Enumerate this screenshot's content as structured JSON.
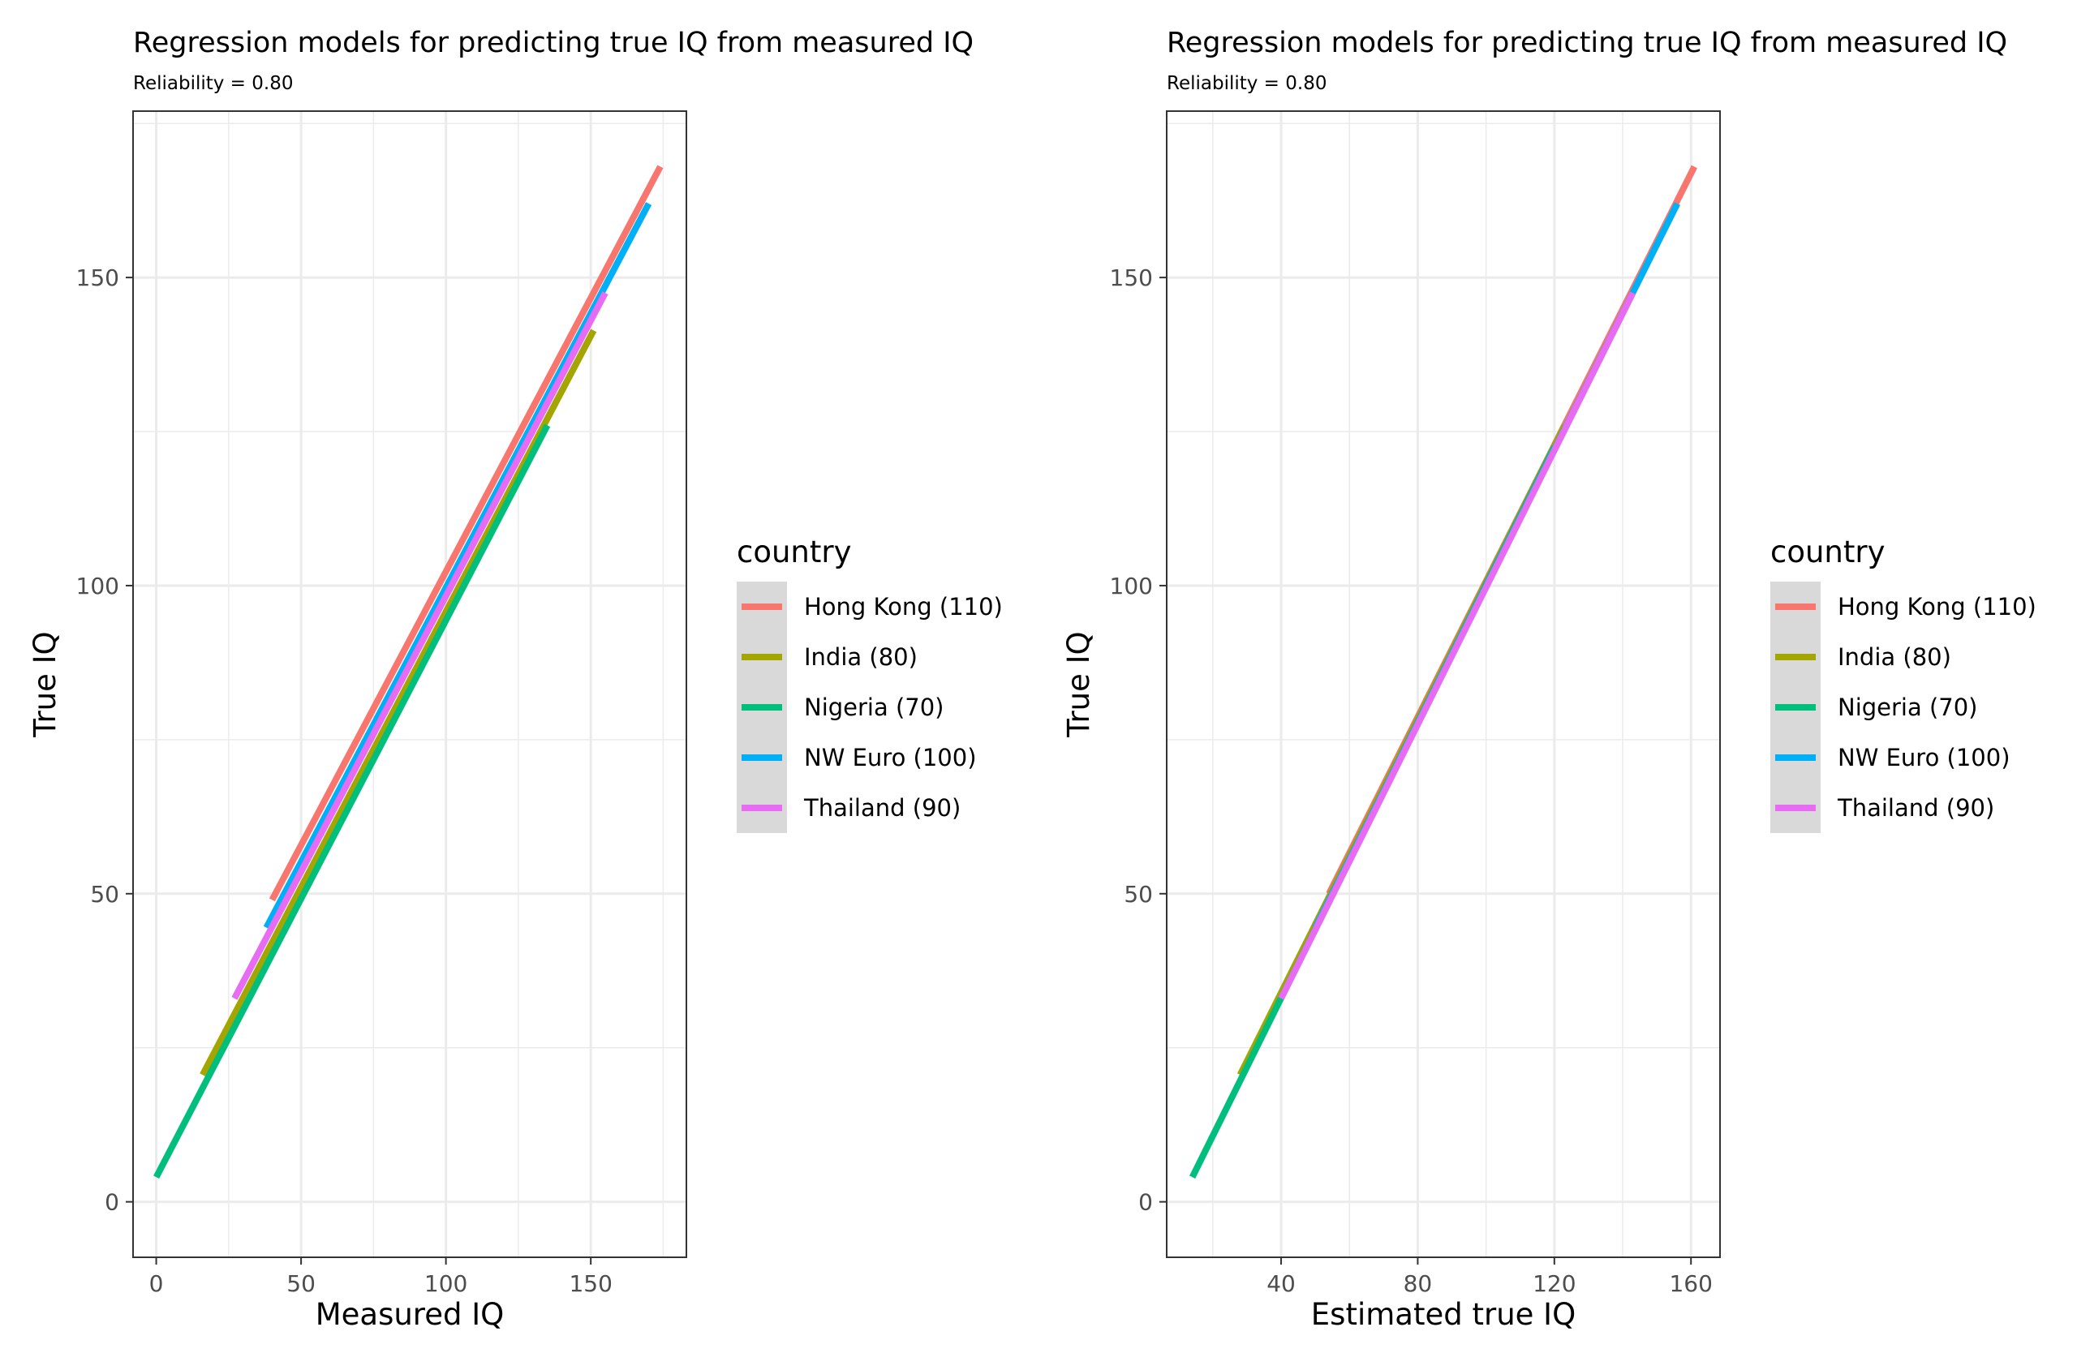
{
  "chart_data": [
    {
      "type": "line",
      "title": "Regression models for predicting true IQ from measured IQ",
      "subtitle": "Reliability = 0.80",
      "xlabel": "Measured IQ",
      "ylabel": "True IQ",
      "xlim": [
        -8,
        183
      ],
      "ylim": [
        -9,
        177
      ],
      "x_ticks": [
        0,
        50,
        100,
        150
      ],
      "x_tick_labels": [
        "0",
        "50",
        "100",
        "150"
      ],
      "y_ticks": [
        0,
        50,
        100,
        150
      ],
      "y_tick_labels": [
        "0",
        "50",
        "100",
        "150"
      ],
      "grid": true,
      "legend_title": "country",
      "legend_position": "right",
      "series": [
        {
          "name": "Hong Kong (110)",
          "color": "#F8766D",
          "x": [
            40,
            174
          ],
          "y": [
            49,
            168
          ]
        },
        {
          "name": "India (80)",
          "color": "#A3A500",
          "x": [
            16,
            151
          ],
          "y": [
            20.6,
            141.4
          ]
        },
        {
          "name": "Nigeria (70)",
          "color": "#00BF7D",
          "x": [
            0,
            135
          ],
          "y": [
            4,
            126
          ]
        },
        {
          "name": "NW Euro (100)",
          "color": "#00B0F6",
          "x": [
            38,
            170
          ],
          "y": [
            44.5,
            162
          ]
        },
        {
          "name": "Thailand (90)",
          "color": "#E76BF3",
          "x": [
            27,
            155
          ],
          "y": [
            33,
            147.5
          ]
        }
      ]
    },
    {
      "type": "line",
      "title": "Regression models for predicting true IQ from measured IQ",
      "subtitle": "Reliability = 0.80",
      "xlabel": "Estimated true IQ",
      "ylabel": "True IQ",
      "xlim": [
        6.5,
        168.5
      ],
      "ylim": [
        -9,
        177
      ],
      "x_ticks": [
        40,
        80,
        120,
        160
      ],
      "x_tick_labels": [
        "40",
        "80",
        "120",
        "160"
      ],
      "y_ticks": [
        0,
        50,
        100,
        150
      ],
      "y_tick_labels": [
        "0",
        "50",
        "100",
        "150"
      ],
      "grid": true,
      "legend_title": "country",
      "legend_position": "right",
      "series": [
        {
          "name": "Hong Kong (110)",
          "color": "#F8766D",
          "x": [
            54,
            161
          ],
          "y": [
            50,
            168
          ]
        },
        {
          "name": "India (80)",
          "color": "#A3A500",
          "x": [
            28,
            123
          ],
          "y": [
            20.6,
            126
          ]
        },
        {
          "name": "Nigeria (70)",
          "color": "#00BF7D",
          "x": [
            14,
            120
          ],
          "y": [
            4,
            122.5
          ]
        },
        {
          "name": "NW Euro (100)",
          "color": "#00B0F6",
          "x": [
            50,
            156
          ],
          "y": [
            44.5,
            162
          ]
        },
        {
          "name": "Thailand (90)",
          "color": "#E76BF3",
          "x": [
            40,
            143
          ],
          "y": [
            33,
            147.5
          ]
        }
      ]
    }
  ]
}
